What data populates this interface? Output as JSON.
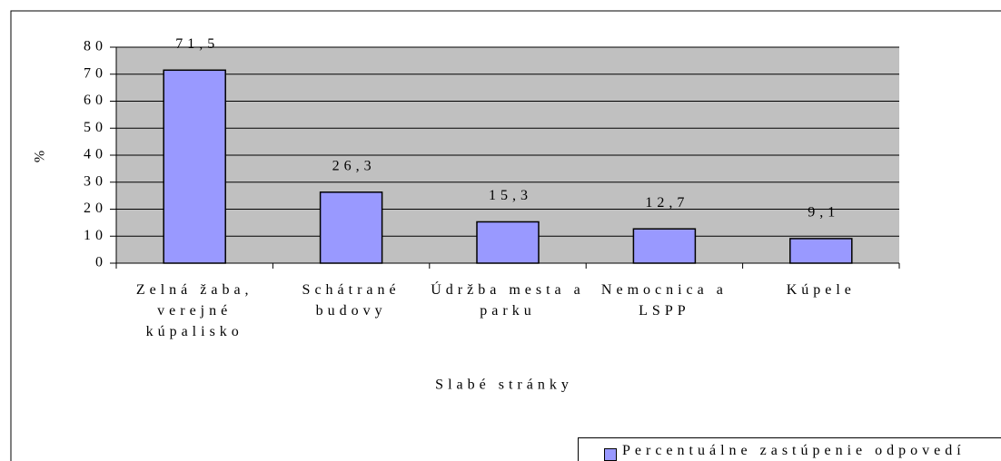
{
  "chart_data": {
    "type": "bar",
    "categories": [
      "Zelná žaba, verejné kúpalisko",
      "Schátrané budovy",
      "Údržba mesta a parku",
      "Nemocnica a LSPP",
      "Kúpele"
    ],
    "series": [
      {
        "name": "Percentuálne zastúpenie odpovedí",
        "color": "#9999ff",
        "values": [
          71.5,
          26.3,
          15.3,
          12.7,
          9.1
        ],
        "value_labels": [
          "71,5",
          "26,3",
          "15,3",
          "12,7",
          "9,1"
        ]
      }
    ],
    "y_label": "%",
    "x_label": "Slabé stránky",
    "ylim": [
      0,
      80
    ],
    "yticks": [
      0,
      10,
      20,
      30,
      40,
      50,
      60,
      70,
      80
    ],
    "grid": true,
    "plot_background": "#c0c0c0"
  }
}
